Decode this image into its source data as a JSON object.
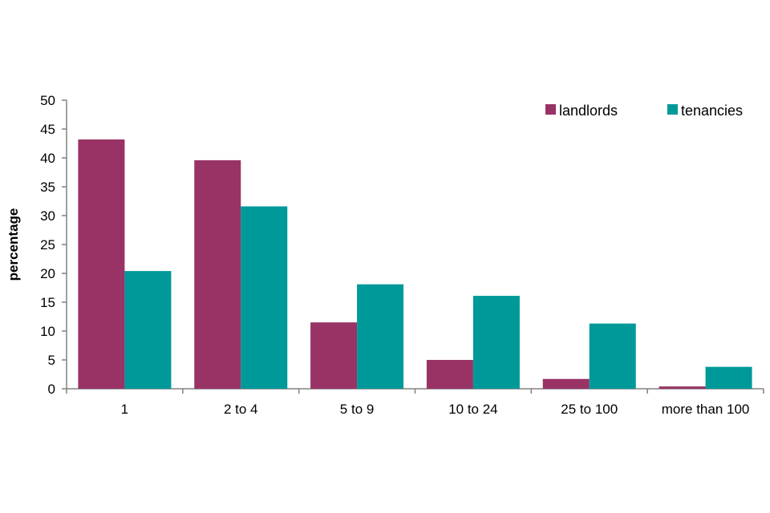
{
  "chart_data": {
    "type": "bar",
    "title": "",
    "xlabel": "",
    "ylabel": "percentage",
    "ylim": [
      0,
      50
    ],
    "yticks": [
      0,
      5,
      10,
      15,
      20,
      25,
      30,
      35,
      40,
      45,
      50
    ],
    "grid": false,
    "legend_position": "top-right",
    "categories": [
      "1",
      "2 to 4",
      "5 to 9",
      "10 to 24",
      "25 to 100",
      "more than 100"
    ],
    "series": [
      {
        "name": "landlords",
        "color": "#993366",
        "values": [
          43.2,
          39.6,
          11.5,
          5.0,
          1.7,
          0.4
        ]
      },
      {
        "name": "tenancies",
        "color": "#009999",
        "values": [
          20.4,
          31.6,
          18.1,
          16.1,
          11.3,
          3.8
        ]
      }
    ],
    "axis_color": "#808080"
  }
}
